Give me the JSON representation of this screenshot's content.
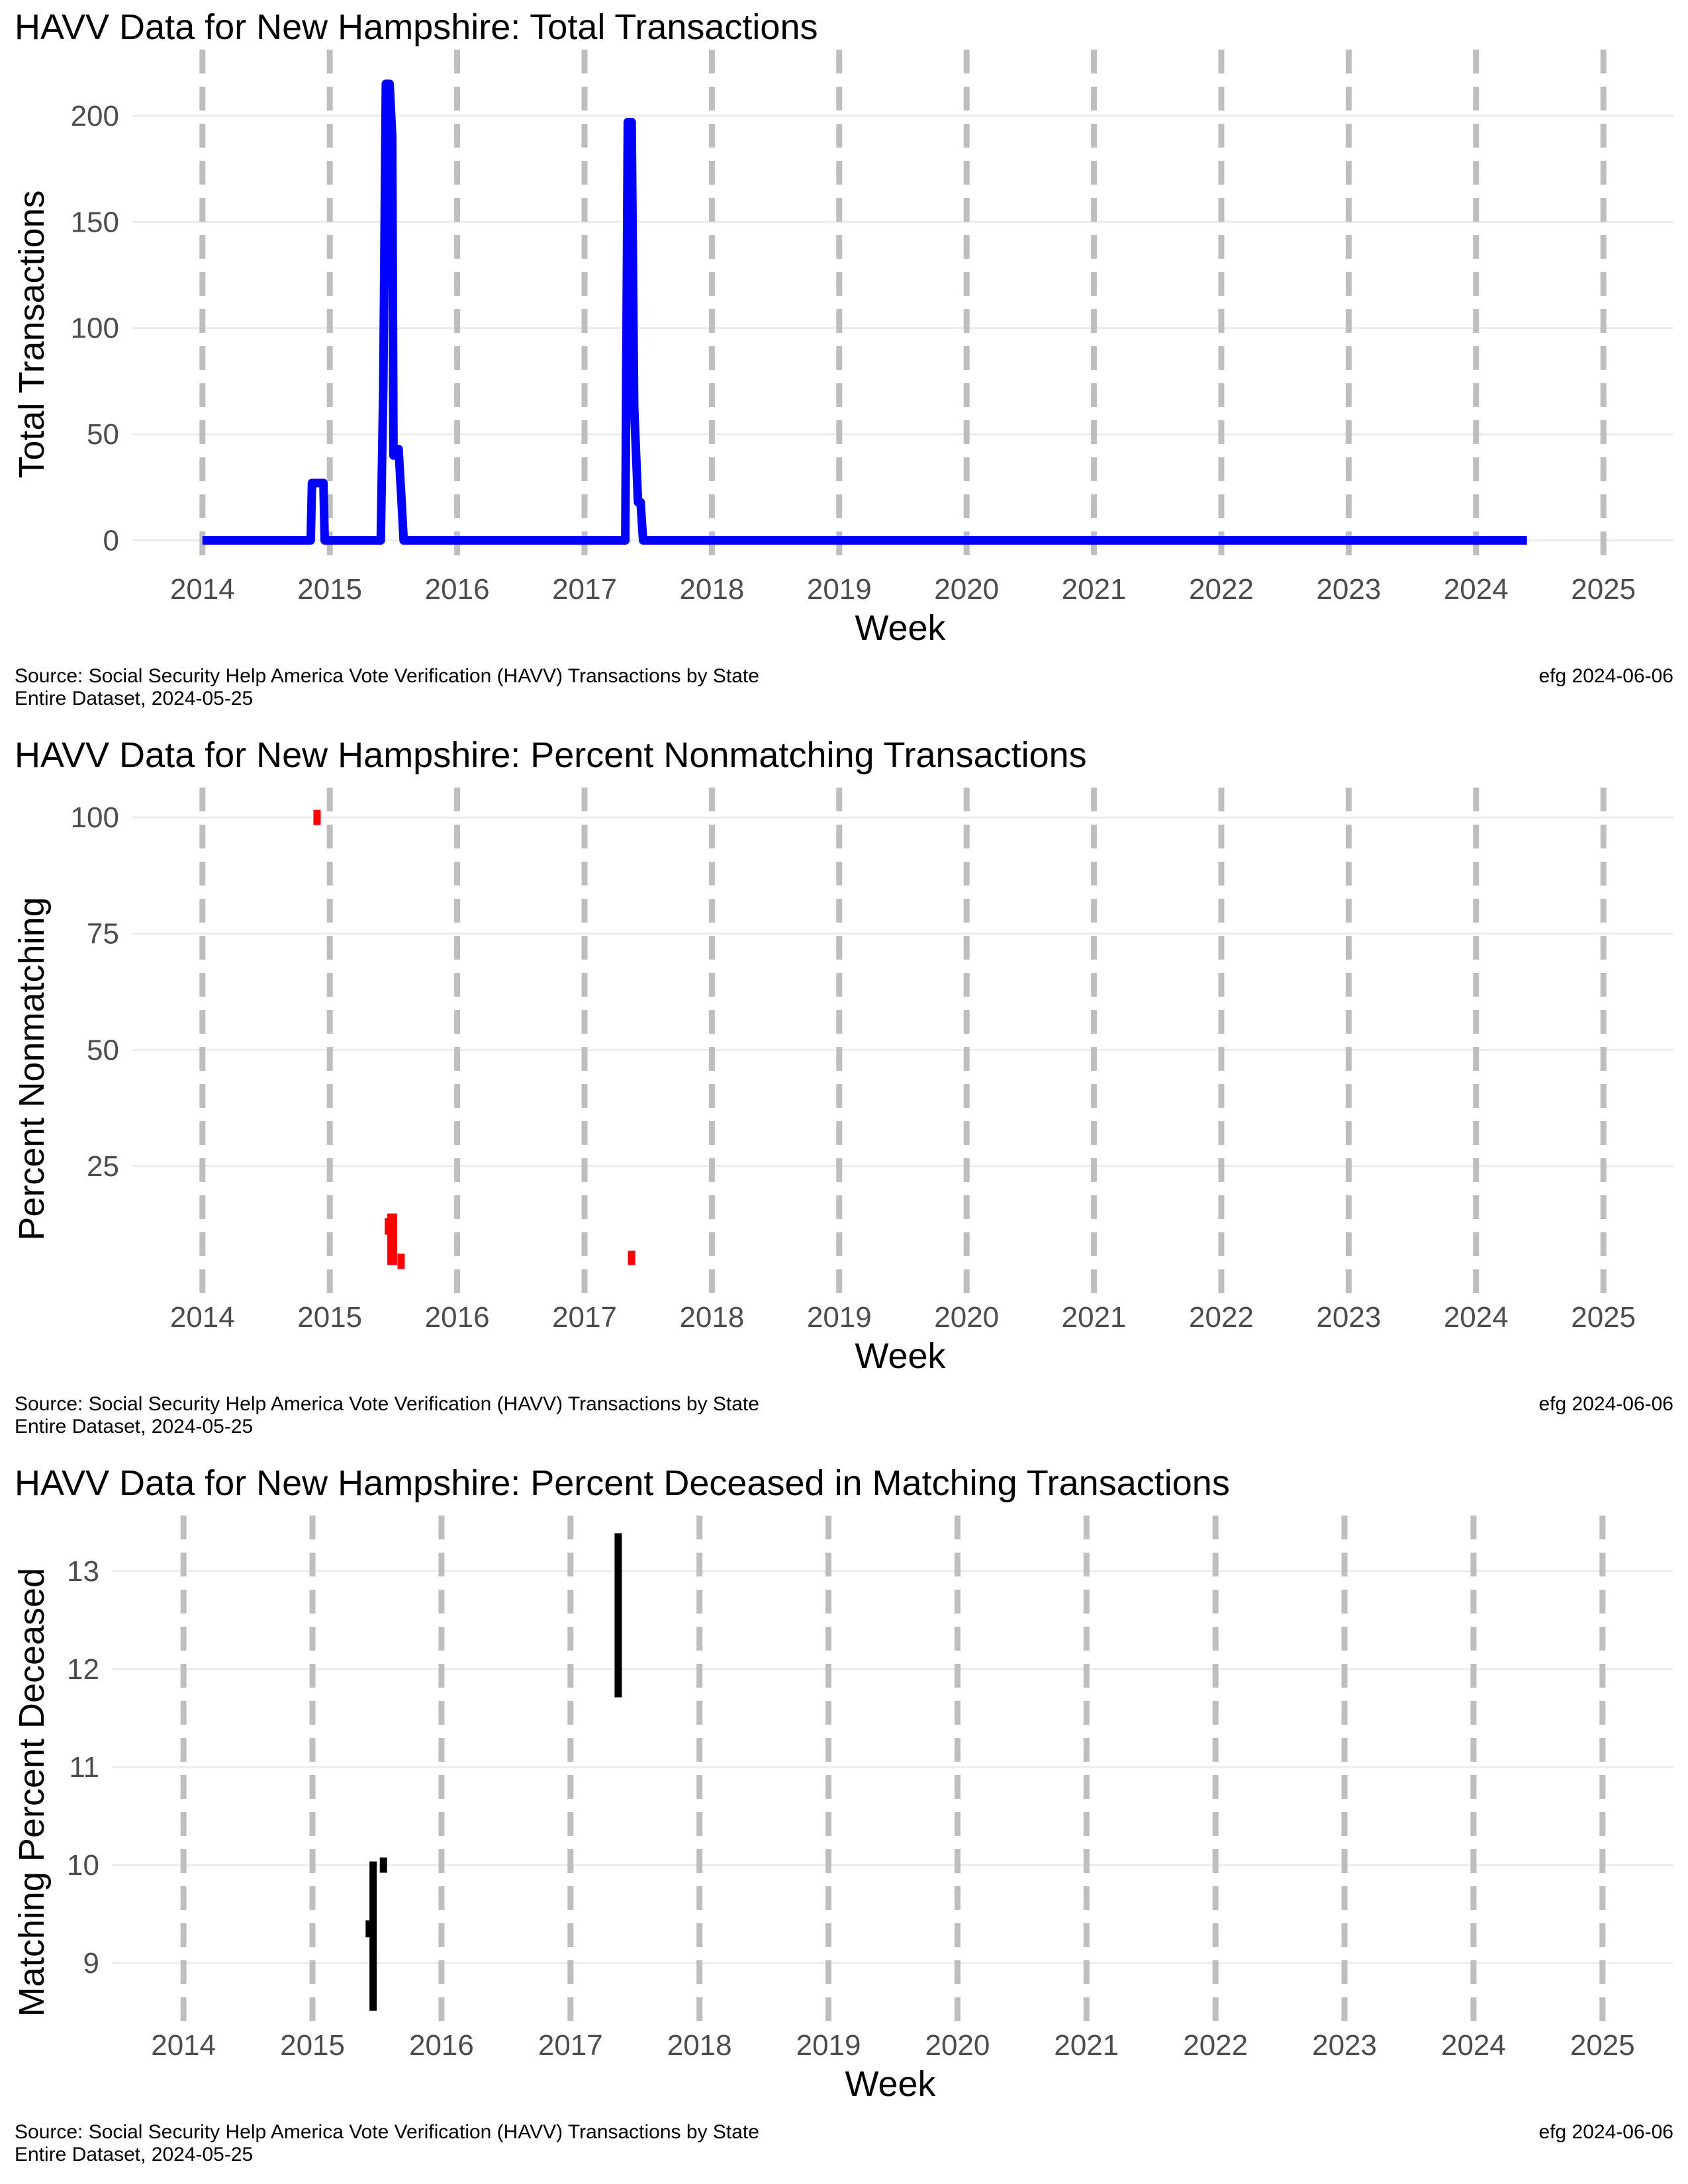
{
  "footer": {
    "source_line1": "Source:  Social Security Help America Vote Verification (HAVV) Transactions by State",
    "source_line2": "Entire Dataset, 2024-05-25",
    "credit": "efg 2024-06-06"
  },
  "colors": {
    "grid": "#ebebeb",
    "year_line": "#bebebe",
    "tick_text": "#4d4d4d"
  },
  "chart_data": [
    {
      "type": "line",
      "title": "HAVV Data for New Hampshire:  Total Transactions",
      "xlabel": "Week",
      "ylabel": "Total Transactions",
      "color": "#0000ff",
      "xlim": [
        2013.45,
        2025.55
      ],
      "ylim": [
        -12,
        228
      ],
      "x_ticks": [
        "2014",
        "2015",
        "2016",
        "2017",
        "2018",
        "2019",
        "2020",
        "2021",
        "2022",
        "2023",
        "2024",
        "2025"
      ],
      "y_ticks": [
        0,
        50,
        100,
        150,
        200
      ],
      "series": [
        {
          "x": [
            2014.0,
            2014.85,
            2014.86,
            2014.95,
            2014.96,
            2015.4,
            2015.42,
            2015.44,
            2015.47,
            2015.49,
            2015.5,
            2015.52,
            2015.54,
            2015.56,
            2015.58,
            2015.6,
            2015.62,
            2017.32,
            2017.34,
            2017.37,
            2017.39,
            2017.42,
            2017.44,
            2017.46,
            2024.4
          ],
          "y": [
            0,
            0,
            27,
            27,
            0,
            0,
            72,
            215,
            215,
            190,
            40,
            43,
            43,
            22,
            0,
            0,
            0,
            0,
            197,
            197,
            63,
            18,
            18,
            0,
            0
          ]
        }
      ]
    },
    {
      "type": "scatter",
      "title": "HAVV Data for New Hampshire:  Percent Nonmatching Transactions",
      "xlabel": "Week",
      "ylabel": "Percent Nonmatching",
      "color": "#ff0000",
      "xlim": [
        2013.45,
        2025.55
      ],
      "ylim": [
        -2.5,
        105
      ],
      "x_ticks": [
        "2014",
        "2015",
        "2016",
        "2017",
        "2018",
        "2019",
        "2020",
        "2021",
        "2022",
        "2023",
        "2024",
        "2025"
      ],
      "y_ticks": [
        25,
        50,
        75,
        100
      ],
      "segments": [
        {
          "x": 2014.9,
          "y0": 100,
          "y1": 100
        },
        {
          "x": 2015.46,
          "y0": 11,
          "y1": 13
        },
        {
          "x": 2015.48,
          "y0": 4.5,
          "y1": 14
        },
        {
          "x": 2015.5,
          "y0": 4.5,
          "y1": 14
        },
        {
          "x": 2015.56,
          "y0": 4.5,
          "y1": 4.5
        },
        {
          "x": 2017.37,
          "y0": 4.5,
          "y1": 6
        }
      ]
    },
    {
      "type": "scatter",
      "title": "HAVV Data for New Hampshire:  Percent Deceased in Matching Transactions",
      "xlabel": "Week",
      "ylabel": "Matching Percent Deceased",
      "color": "#000000",
      "xlim": [
        2013.45,
        2025.55
      ],
      "ylim": [
        8.4,
        13.5
      ],
      "x_ticks": [
        "2014",
        "2015",
        "2016",
        "2017",
        "2018",
        "2019",
        "2020",
        "2021",
        "2022",
        "2023",
        "2024",
        "2025"
      ],
      "y_ticks": [
        9,
        10,
        11,
        12,
        13
      ],
      "segments": [
        {
          "x": 2015.44,
          "y0": 9.3,
          "y1": 9.4
        },
        {
          "x": 2015.47,
          "y0": 8.55,
          "y1": 10.0
        },
        {
          "x": 2015.55,
          "y0": 10.0,
          "y1": 10.0
        },
        {
          "x": 2017.37,
          "y0": 11.75,
          "y1": 13.35
        }
      ]
    }
  ]
}
